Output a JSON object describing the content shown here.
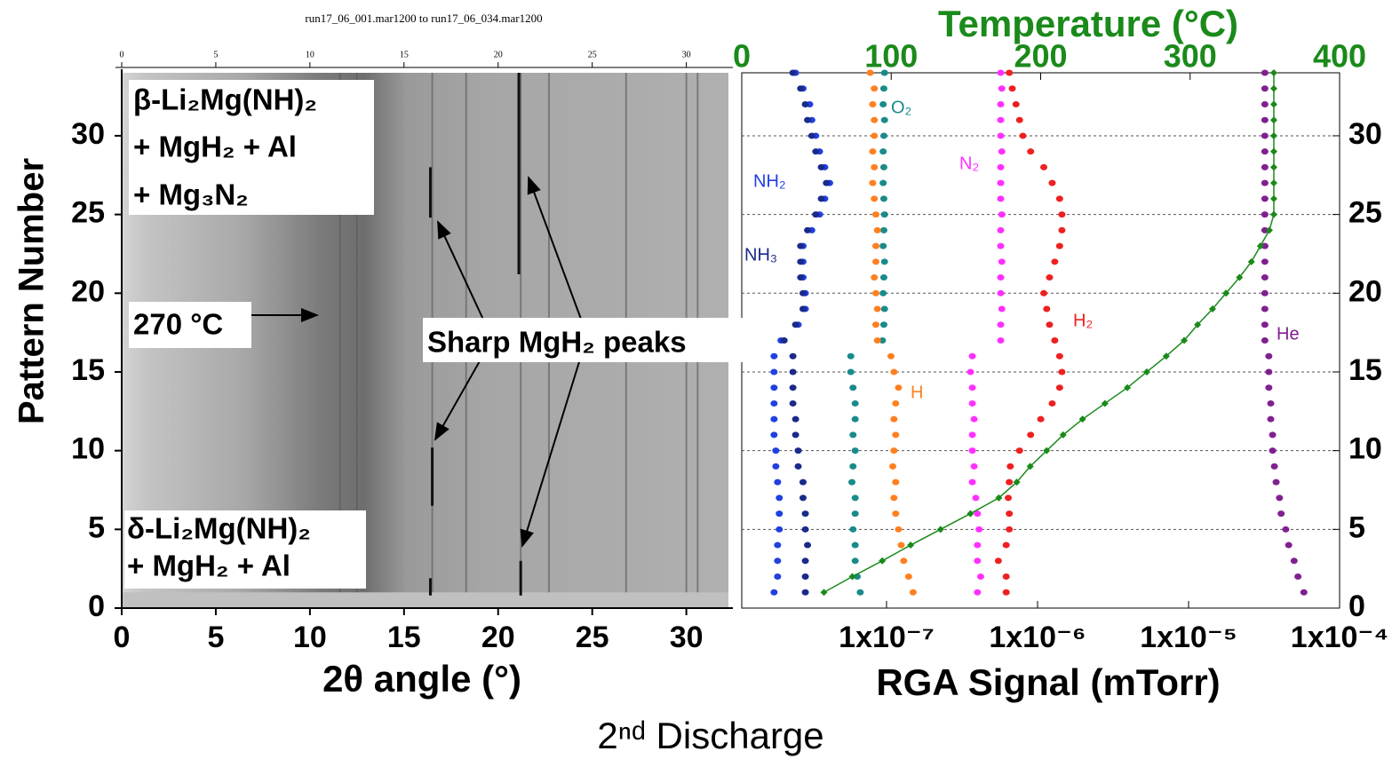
{
  "chart_data": [
    {
      "type": "image",
      "title": "run17_06_001.mar1200 to run17_06_034.mar1200",
      "x_label": "2θ angle (°)",
      "y_label": "Pattern Number",
      "xlim": [
        0,
        32
      ],
      "ylim": [
        0,
        34
      ],
      "xticks": [
        0,
        5,
        10,
        15,
        20,
        25,
        30
      ],
      "x2ticks": [
        0,
        5,
        10,
        15,
        20,
        25,
        30
      ],
      "yticks": [
        0,
        5,
        10,
        15,
        20,
        25,
        30
      ],
      "peaks": [
        11.6,
        12.5,
        16.5,
        18.3,
        21.2,
        22.7,
        26.8,
        30.0,
        30.6
      ],
      "sharp_peaks": [
        {
          "x": 16.4,
          "y": [
            24.8,
            28
          ]
        },
        {
          "x": 16.5,
          "y": [
            6.5,
            10.2
          ]
        },
        {
          "x": 16.4,
          "y": [
            0.8,
            1.9
          ]
        },
        {
          "x": 21.1,
          "y": [
            21.2,
            34
          ]
        },
        {
          "x": 21.2,
          "y": [
            0.8,
            3
          ]
        }
      ],
      "annotations": [
        "β-Li₂Mg(NH)₂",
        "+ MgH₂ + Al",
        "+ Mg₃N₂",
        "270 °C",
        "Sharp MgH₂ peaks",
        "δ-Li₂Mg(NH)₂",
        "+ MgH₂ + Al"
      ]
    },
    {
      "type": "scatter",
      "x_label": "RGA Signal (mTorr)",
      "x2_label": "Temperature (°C)",
      "x_log": true,
      "xlim": [
        1.1e-08,
        0.0001
      ],
      "xticks": [
        {
          "value": 1e-07,
          "label": "1x10⁻⁷"
        },
        {
          "value": 1e-06,
          "label": "1x10⁻⁶"
        },
        {
          "value": 1e-05,
          "label": "1x10⁻⁵"
        },
        {
          "value": 0.0001,
          "label": "1x10⁻⁴"
        }
      ],
      "x2lim": [
        0,
        400
      ],
      "x2ticks": [
        0,
        100,
        200,
        300,
        400
      ],
      "ylim": [
        0,
        34
      ],
      "yticks": [
        0,
        5,
        10,
        15,
        20,
        25,
        30
      ],
      "grid": true,
      "y": [
        1,
        2,
        3,
        4,
        5,
        6,
        7,
        8,
        9,
        10,
        11,
        12,
        13,
        14,
        15,
        16,
        17,
        18,
        19,
        20,
        21,
        22,
        23,
        24,
        25,
        26,
        27,
        28,
        29,
        30,
        31,
        32,
        33,
        34
      ],
      "series": [
        {
          "name": "NH₂",
          "color": "#2040e0",
          "values": [
            1.8e-08,
            1.9e-08,
            1.9e-08,
            1.9e-08,
            1.95e-08,
            1.95e-08,
            1.95e-08,
            1.9e-08,
            1.85e-08,
            1.85e-08,
            1.8e-08,
            1.8e-08,
            1.8e-08,
            1.8e-08,
            1.8e-08,
            1.8e-08,
            2e-08,
            2.6e-08,
            2.9e-08,
            2.9e-08,
            2.8e-08,
            2.8e-08,
            2.8e-08,
            3.2e-08,
            3.6e-08,
            3.9e-08,
            4.2e-08,
            3.9e-08,
            3.6e-08,
            3.4e-08,
            3.2e-08,
            3.1e-08,
            2.8e-08,
            2.5e-08
          ]
        },
        {
          "name": "NH₃",
          "color": "#1a2a8a",
          "values": [
            2.9e-08,
            2.9e-08,
            2.9e-08,
            3e-08,
            2.9e-08,
            2.9e-08,
            2.8e-08,
            2.8e-08,
            2.6e-08,
            2.6e-08,
            2.5e-08,
            2.5e-08,
            2.4e-08,
            2.4e-08,
            2.4e-08,
            2.4e-08,
            2.1e-08,
            2.5e-08,
            2.8e-08,
            2.8e-08,
            2.7e-08,
            2.7e-08,
            2.7e-08,
            3e-08,
            3.4e-08,
            3.7e-08,
            4e-08,
            3.7e-08,
            3.4e-08,
            3.2e-08,
            3e-08,
            2.9e-08,
            2.7e-08,
            2.4e-08
          ]
        },
        {
          "name": "O₂",
          "color": "#1a8a8a",
          "values": [
            6.7e-08,
            6.4e-08,
            6.2e-08,
            6.2e-08,
            6e-08,
            6.2e-08,
            6.2e-08,
            5.9e-08,
            6e-08,
            6.2e-08,
            6e-08,
            6.2e-08,
            6.2e-08,
            6e-08,
            5.8e-08,
            5.8e-08,
            9.4e-08,
            9.6e-08,
            9.7e-08,
            9.5e-08,
            9.6e-08,
            9.7e-08,
            9.5e-08,
            9.6e-08,
            9.7e-08,
            9.6e-08,
            9.5e-08,
            9.6e-08,
            9.5e-08,
            9.6e-08,
            9.7e-08,
            9.5e-08,
            9.6e-08,
            9.7e-08
          ]
        },
        {
          "name": "H",
          "color": "#ff8020",
          "values": [
            1.5e-07,
            1.4e-07,
            1.3e-07,
            1.25e-07,
            1.2e-07,
            1.15e-07,
            1.12e-07,
            1.15e-07,
            1.1e-07,
            1.12e-07,
            1.15e-07,
            1.12e-07,
            1.15e-07,
            1.2e-07,
            1.12e-07,
            1.07e-07,
            8.7e-08,
            8.5e-08,
            8.7e-08,
            8.5e-08,
            8.3e-08,
            8.5e-08,
            8.5e-08,
            8.7e-08,
            8.5e-08,
            8.3e-08,
            8.1e-08,
            8.3e-08,
            8.1e-08,
            8.3e-08,
            8.3e-08,
            8.1e-08,
            8.3e-08,
            7.8e-08
          ]
        },
        {
          "name": "N₂",
          "color": "#ff30ff",
          "values": [
            4e-07,
            4.2e-07,
            4e-07,
            4e-07,
            4.1e-07,
            4e-07,
            3.9e-07,
            3.7e-07,
            3.8e-07,
            3.7e-07,
            3.7e-07,
            3.8e-07,
            3.7e-07,
            3.7e-07,
            3.6e-07,
            3.7e-07,
            5.7e-07,
            5.7e-07,
            5.8e-07,
            5.7e-07,
            5.7e-07,
            5.8e-07,
            5.7e-07,
            5.7e-07,
            5.8e-07,
            5.7e-07,
            5.7e-07,
            5.7e-07,
            5.8e-07,
            5.7e-07,
            5.7e-07,
            5.7e-07,
            5.8e-07,
            5.7e-07
          ]
        },
        {
          "name": "H₂",
          "color": "#ee2020",
          "values": [
            6.2e-07,
            6.2e-07,
            5.5e-07,
            6.2e-07,
            6.5e-07,
            6.5e-07,
            6.4e-07,
            6.5e-07,
            6.6e-07,
            7.6e-07,
            9e-07,
            1.05e-06,
            1.25e-06,
            1.4e-06,
            1.45e-06,
            1.4e-06,
            1.3e-06,
            1.2e-06,
            1.15e-06,
            1.1e-06,
            1.2e-06,
            1.3e-06,
            1.4e-06,
            1.45e-06,
            1.45e-06,
            1.4e-06,
            1.25e-06,
            1.1e-06,
            9e-07,
            8e-07,
            7.6e-07,
            7.2e-07,
            6.8e-07,
            6.5e-07
          ]
        },
        {
          "name": "He",
          "color": "#802090",
          "values": [
            5.8e-05,
            5.3e-05,
            5e-05,
            4.6e-05,
            4.4e-05,
            4.1e-05,
            4e-05,
            3.8e-05,
            3.7e-05,
            3.6e-05,
            3.6e-05,
            3.5e-05,
            3.5e-05,
            3.4e-05,
            3.4e-05,
            3.4e-05,
            3.2e-05,
            3.2e-05,
            3.2e-05,
            3.2e-05,
            3.2e-05,
            3.2e-05,
            3.2e-05,
            3.2e-05,
            3.2e-05,
            3.2e-05,
            3.2e-05,
            3.2e-05,
            3.2e-05,
            3.2e-05,
            3.2e-05,
            3.2e-05,
            3.2e-05,
            3.2e-05
          ]
        },
        {
          "name": "Temperature (°C)",
          "color": "#1a8a1a",
          "axis": "x2",
          "values": [
            55,
            74,
            94,
            113,
            133,
            153,
            172,
            184,
            193,
            204,
            215,
            228,
            243,
            258,
            271,
            284,
            296,
            305,
            315,
            324,
            333,
            341,
            347,
            353,
            356,
            356,
            356,
            356,
            356,
            356,
            356,
            356,
            356,
            356
          ]
        }
      ]
    }
  ],
  "caption": "2ⁿᵈ Discharge"
}
